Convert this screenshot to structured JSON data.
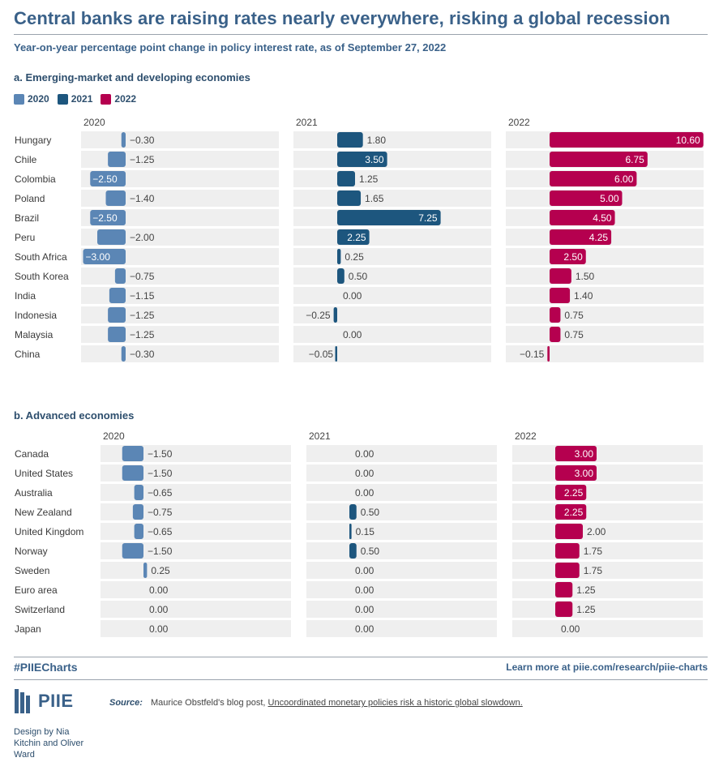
{
  "title": "Central banks are raising rates nearly everywhere, risking a global recession",
  "subtitle": "Year-on-year percentage point change in policy interest rate, as of September 27, 2022",
  "legend": [
    {
      "label": "2020",
      "color": "#5b86b5"
    },
    {
      "label": "2021",
      "color": "#1d567e"
    },
    {
      "label": "2022",
      "color": "#b5004f"
    }
  ],
  "footer": {
    "hashtag": "#PIIECharts",
    "learn_more": "Learn more at piie.com/research/piie-charts",
    "logo": "PIIE",
    "source_label": "Source:",
    "source_text": "Maurice Obstfeld's blog post, ",
    "source_link": "Uncoordinated monetary policies risk a historic global slowdown.",
    "credit": "Design by Nia Kitchin and Oliver Ward"
  },
  "chart_data": [
    {
      "type": "bar",
      "orientation": "horizontal",
      "title": "a. Emerging-market and developing economies",
      "categories": [
        "Hungary",
        "Chile",
        "Colombia",
        "Poland",
        "Brazil",
        "Peru",
        "South Africa",
        "South Korea",
        "India",
        "Indonesia",
        "Malaysia",
        "China"
      ],
      "series": [
        {
          "name": "2020",
          "color": "#5b86b5",
          "values": [
            -0.3,
            -1.25,
            -2.5,
            -1.4,
            -2.5,
            -2.0,
            -3.0,
            -0.75,
            -1.15,
            -1.25,
            -1.25,
            -0.3
          ],
          "labels": [
            "−0.30",
            "−1.25",
            "−2.50",
            "−1.40",
            "−2.50",
            "−2.00",
            "−3.00",
            "−0.75",
            "−1.15",
            "−1.25",
            "−1.25",
            "−0.30"
          ]
        },
        {
          "name": "2021",
          "color": "#1d567e",
          "values": [
            1.8,
            3.5,
            1.25,
            1.65,
            7.25,
            2.25,
            0.25,
            0.5,
            0.0,
            -0.25,
            0.0,
            -0.05
          ],
          "labels": [
            "1.80",
            "3.50",
            "1.25",
            "1.65",
            "7.25",
            "2.25",
            "0.25",
            "0.50",
            "0.00",
            "−0.25",
            "0.00",
            "−0.05"
          ]
        },
        {
          "name": "2022",
          "color": "#b5004f",
          "values": [
            10.6,
            6.75,
            6.0,
            5.0,
            4.5,
            4.25,
            2.5,
            1.5,
            1.4,
            0.75,
            0.75,
            -0.15
          ],
          "labels": [
            "10.60",
            "6.75",
            "6.00",
            "5.00",
            "4.50",
            "4.25",
            "2.50",
            "1.50",
            "1.40",
            "0.75",
            "0.75",
            "−0.15"
          ]
        }
      ]
    },
    {
      "type": "bar",
      "orientation": "horizontal",
      "title": "b. Advanced economies",
      "categories": [
        "Canada",
        "United States",
        "Australia",
        "New Zealand",
        "United Kingdom",
        "Norway",
        "Sweden",
        "Euro area",
        "Switzerland",
        "Japan"
      ],
      "series": [
        {
          "name": "2020",
          "color": "#5b86b5",
          "values": [
            -1.5,
            -1.5,
            -0.65,
            -0.75,
            -0.65,
            -1.5,
            0.25,
            0.0,
            0.0,
            0.0
          ],
          "labels": [
            "−1.50",
            "−1.50",
            "−0.65",
            "−0.75",
            "−0.65",
            "−1.50",
            "0.25",
            "0.00",
            "0.00",
            "0.00"
          ]
        },
        {
          "name": "2021",
          "color": "#1d567e",
          "values": [
            0.0,
            0.0,
            0.0,
            0.5,
            0.15,
            0.5,
            0.0,
            0.0,
            0.0,
            0.0
          ],
          "labels": [
            "0.00",
            "0.00",
            "0.00",
            "0.50",
            "0.15",
            "0.50",
            "0.00",
            "0.00",
            "0.00",
            "0.00"
          ]
        },
        {
          "name": "2022",
          "color": "#b5004f",
          "values": [
            3.0,
            3.0,
            2.25,
            2.25,
            2.0,
            1.75,
            1.75,
            1.25,
            1.25,
            0.0
          ],
          "labels": [
            "3.00",
            "3.00",
            "2.25",
            "2.25",
            "2.00",
            "1.75",
            "1.75",
            "1.25",
            "1.25",
            "0.00"
          ]
        }
      ]
    }
  ]
}
